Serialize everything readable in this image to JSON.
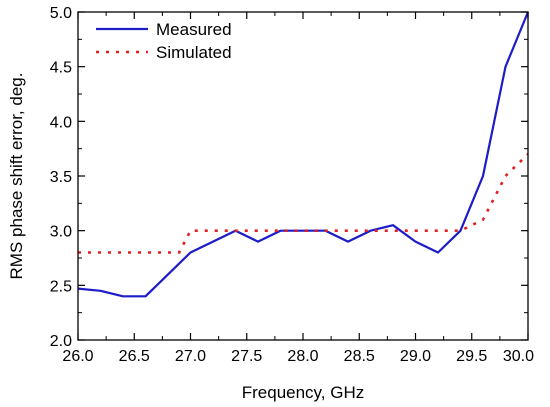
{
  "chart_data": {
    "type": "line",
    "xlabel": "Frequency, GHz",
    "ylabel": "RMS phase shift error, deg.",
    "xlim": [
      26.0,
      30.0
    ],
    "ylim": [
      2.0,
      5.0
    ],
    "x_ticks": [
      "26.0",
      "26.5",
      "27.0",
      "27.5",
      "28.0",
      "28.5",
      "29.0",
      "29.5",
      "30.0"
    ],
    "y_ticks": [
      "2.0",
      "2.5",
      "3.0",
      "3.5",
      "4.0",
      "4.5",
      "5.0"
    ],
    "grid": false,
    "legend_position": "top-left",
    "series": [
      {
        "name": "Measured",
        "style": "solid",
        "color": "#1c1cc8",
        "x": [
          26.0,
          26.2,
          26.4,
          26.6,
          26.8,
          27.0,
          27.2,
          27.4,
          27.6,
          27.8,
          28.0,
          28.2,
          28.4,
          28.6,
          28.8,
          29.0,
          29.2,
          29.4,
          29.6,
          29.8,
          30.0
        ],
        "y": [
          2.47,
          2.45,
          2.4,
          2.4,
          2.6,
          2.8,
          2.9,
          3.0,
          2.9,
          3.0,
          3.0,
          3.0,
          2.9,
          3.0,
          3.05,
          2.9,
          2.8,
          3.0,
          3.5,
          4.5,
          5.0
        ]
      },
      {
        "name": "Simulated",
        "style": "dotted",
        "color": "#e02020",
        "x": [
          26.0,
          26.8,
          26.9,
          27.0,
          29.0,
          29.4,
          29.6,
          29.8,
          30.0
        ],
        "y": [
          2.8,
          2.8,
          2.8,
          3.0,
          3.0,
          3.0,
          3.1,
          3.5,
          3.7
        ]
      }
    ]
  }
}
